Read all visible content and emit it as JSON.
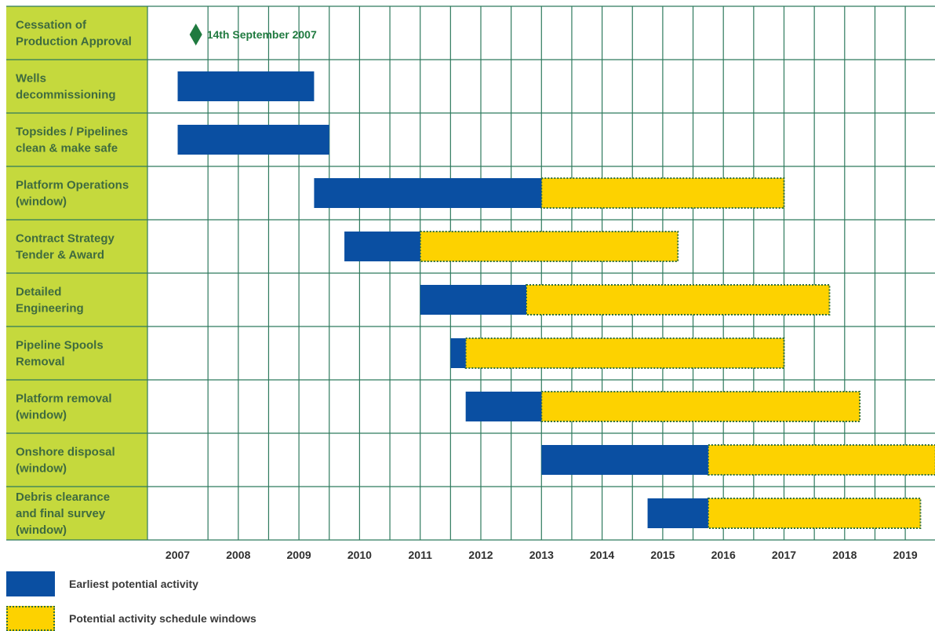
{
  "colors": {
    "label_bg": "#c5d93d",
    "grid": "#2f7a5e",
    "earliest": "#0a4fa2",
    "window": "#fdd200",
    "window_border": "#2f6f3a",
    "milestone": "#1f7a3f",
    "label_text": "#3f6b3f"
  },
  "chart_data": {
    "type": "gantt",
    "x_ticks": [
      "2007",
      "2008",
      "2009",
      "2010",
      "2011",
      "2012",
      "2013",
      "2014",
      "2015",
      "2016",
      "2017",
      "2018",
      "2019"
    ],
    "x_range": [
      2007,
      2019.5
    ],
    "rows": [
      {
        "label": [
          "Cessation of",
          "Production Approval"
        ],
        "milestone": {
          "date": 2007.3,
          "text": "14th September 2007"
        }
      },
      {
        "label": [
          "Wells",
          "decommissioning"
        ],
        "earliest": [
          2007,
          2009.25
        ]
      },
      {
        "label": [
          "Topsides / Pipelines",
          "clean & make safe"
        ],
        "earliest": [
          2007,
          2009.5
        ]
      },
      {
        "label": [
          "Platform Operations",
          "(window)"
        ],
        "earliest": [
          2009.25,
          2013
        ],
        "window": [
          2013,
          2017
        ]
      },
      {
        "label": [
          "Contract Strategy",
          "Tender & Award"
        ],
        "earliest": [
          2009.75,
          2011
        ],
        "window": [
          2011,
          2015.25
        ]
      },
      {
        "label": [
          "Detailed",
          "Engineering"
        ],
        "earliest": [
          2011,
          2012.75
        ],
        "window": [
          2012.75,
          2017.75
        ]
      },
      {
        "label": [
          "Pipeline Spools",
          "Removal"
        ],
        "earliest": [
          2011.5,
          2011.75
        ],
        "window": [
          2011.75,
          2017
        ]
      },
      {
        "label": [
          "Platform removal",
          "(window)"
        ],
        "earliest": [
          2011.75,
          2013
        ],
        "window": [
          2013,
          2018.25
        ]
      },
      {
        "label": [
          "Onshore disposal",
          "(window)"
        ],
        "earliest": [
          2013,
          2015.75
        ],
        "window": [
          2015.75,
          2019.5
        ]
      },
      {
        "label": [
          "Debris clearance",
          "and final survey",
          "(window)"
        ],
        "earliest": [
          2014.75,
          2015.75
        ],
        "window": [
          2015.75,
          2019.25
        ]
      }
    ],
    "legend": [
      {
        "key": "earliest",
        "text": "Earliest potential activity"
      },
      {
        "key": "window",
        "text": "Potential activity schedule windows"
      }
    ]
  }
}
